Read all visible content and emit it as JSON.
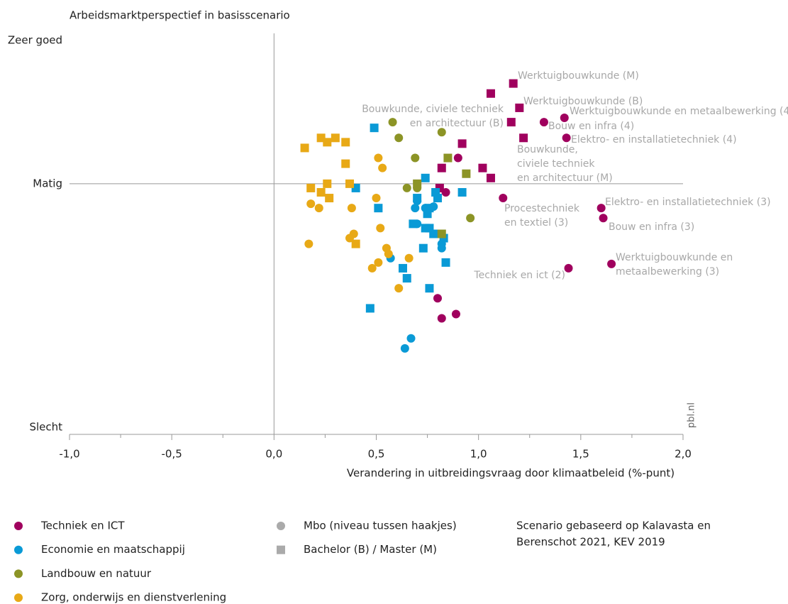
{
  "chart_data": {
    "type": "scatter",
    "title": "Arbeidsmarktperspectief in basisscenario",
    "x_label": "Verandering in uitbreidingsvraag door klimaatbeleid (%-punt)",
    "xlim": [
      -1.0,
      2.0
    ],
    "xticks": [
      {
        "value": -1.0,
        "label": "-1,0"
      },
      {
        "value": -0.5,
        "label": "-0,5"
      },
      {
        "value": 0.0,
        "label": "0,0"
      },
      {
        "value": 0.5,
        "label": "0,5"
      },
      {
        "value": 1.0,
        "label": "1,0"
      },
      {
        "value": 1.5,
        "label": "1,5"
      },
      {
        "value": 2.0,
        "label": "2,0"
      }
    ],
    "xminorticks": [
      -0.75,
      -0.25,
      0.25,
      0.75,
      1.25,
      1.75
    ],
    "ylim": [
      -1.75,
      1.05
    ],
    "yticks": [
      {
        "value": 1,
        "label": "Zeer goed"
      },
      {
        "value": 0,
        "label": "Matig"
      },
      {
        "value": -1.7,
        "label": "Slecht"
      }
    ],
    "series": [
      {
        "name": "Techniek en ICT",
        "color": "#a0005e",
        "circle": {
          "x": [
            1.42,
            1.32,
            1.43,
            0.9,
            0.84,
            1.12,
            1.6,
            1.61,
            1.65,
            1.44,
            0.8,
            0.89,
            0.82
          ],
          "y": [
            0.46,
            0.43,
            0.32,
            0.18,
            -0.06,
            -0.1,
            -0.17,
            -0.24,
            -0.56,
            -0.59,
            -0.8,
            -0.91,
            -0.94
          ]
        },
        "square": {
          "x": [
            1.17,
            1.06,
            1.2,
            1.16,
            1.22,
            0.92,
            0.82,
            1.02,
            1.06,
            0.81
          ],
          "y": [
            0.7,
            0.63,
            0.53,
            0.43,
            0.32,
            0.28,
            0.11,
            0.11,
            0.04,
            -0.03
          ]
        }
      },
      {
        "name": "Economie en maatschappij",
        "color": "#0a9ad6",
        "circle": {
          "x": [
            0.69,
            0.7,
            0.74,
            0.7,
            0.78,
            0.82,
            0.82,
            0.57,
            0.67,
            0.64
          ],
          "y": [
            -0.17,
            -0.12,
            -0.17,
            -0.28,
            -0.16,
            -0.42,
            -0.45,
            -0.52,
            -1.08,
            -1.15
          ]
        },
        "square": {
          "x": [
            0.49,
            0.74,
            0.4,
            0.7,
            0.51,
            0.76,
            0.79,
            0.8,
            0.92,
            0.75,
            0.68,
            0.74,
            0.76,
            0.78,
            0.83,
            0.73,
            0.84,
            0.63,
            0.65,
            0.76,
            0.47
          ],
          "y": [
            0.39,
            0.04,
            -0.03,
            -0.1,
            -0.17,
            -0.17,
            -0.06,
            -0.1,
            -0.06,
            -0.21,
            -0.28,
            -0.31,
            -0.31,
            -0.35,
            -0.38,
            -0.45,
            -0.55,
            -0.59,
            -0.66,
            -0.73,
            -0.87
          ]
        }
      },
      {
        "name": "Landbouw en natuur",
        "color": "#8c9426",
        "circle": {
          "x": [
            0.58,
            0.61,
            0.82,
            0.69,
            0.65,
            0.7,
            0.96
          ],
          "y": [
            0.43,
            0.32,
            0.36,
            0.18,
            -0.03,
            -0.03,
            -0.24
          ]
        },
        "square": {
          "x": [
            0.85,
            0.94,
            0.7,
            0.82
          ],
          "y": [
            0.18,
            0.07,
            0.0,
            -0.35
          ]
        }
      },
      {
        "name": "Zorg, onderwijs en dienstverlening",
        "color": "#e8a916",
        "circle": {
          "x": [
            0.51,
            0.53,
            0.5,
            0.18,
            0.22,
            0.38,
            0.52,
            0.39,
            0.37,
            0.17,
            0.55,
            0.56,
            0.66,
            0.51,
            0.48,
            0.61
          ],
          "y": [
            0.18,
            0.11,
            -0.1,
            -0.14,
            -0.17,
            -0.17,
            -0.31,
            -0.35,
            -0.38,
            -0.42,
            -0.45,
            -0.49,
            -0.52,
            -0.55,
            -0.59,
            -0.73
          ]
        },
        "square": {
          "x": [
            0.15,
            0.23,
            0.26,
            0.3,
            0.35,
            0.35,
            0.26,
            0.37,
            0.18,
            0.23,
            0.27,
            0.4
          ],
          "y": [
            0.25,
            0.32,
            0.29,
            0.32,
            0.29,
            0.14,
            0.0,
            0.0,
            -0.03,
            -0.06,
            -0.1,
            -0.42
          ]
        }
      }
    ],
    "shape_legend": [
      {
        "label": "Mbo (niveau tussen haakjes)",
        "shape": "circle"
      },
      {
        "label": "Bachelor (B) / Master (M)",
        "shape": "square"
      }
    ],
    "annotations": [
      [
        "Werktuigbouwkunde (M)"
      ],
      [
        "Werktuigbouwkunde (B)"
      ],
      [
        "Werktuigbouwkunde en metaalbewerking (4)"
      ],
      [
        "Bouw en infra (4)"
      ],
      [
        "Elektro- en installatietechniek (4)"
      ],
      [
        "Bouwkunde, civiele techniek",
        "en architectuur (B)"
      ],
      [
        "Bouwkunde,",
        "civiele techniek",
        "en architectuur (M)"
      ],
      [
        "Elektro- en installatietechniek (3)"
      ],
      [
        "Procestechniek",
        "en textiel (3)"
      ],
      [
        "Bouw en infra (3)"
      ],
      [
        "Werktuigbouwkunde en",
        "metaalbewerking (3)"
      ],
      [
        "Techniek en ict (2)"
      ]
    ],
    "source": "pbl.nl",
    "note": [
      "Scenario gebaseerd op Kalavasta en",
      "Berenschot 2021, KEV 2019"
    ]
  }
}
